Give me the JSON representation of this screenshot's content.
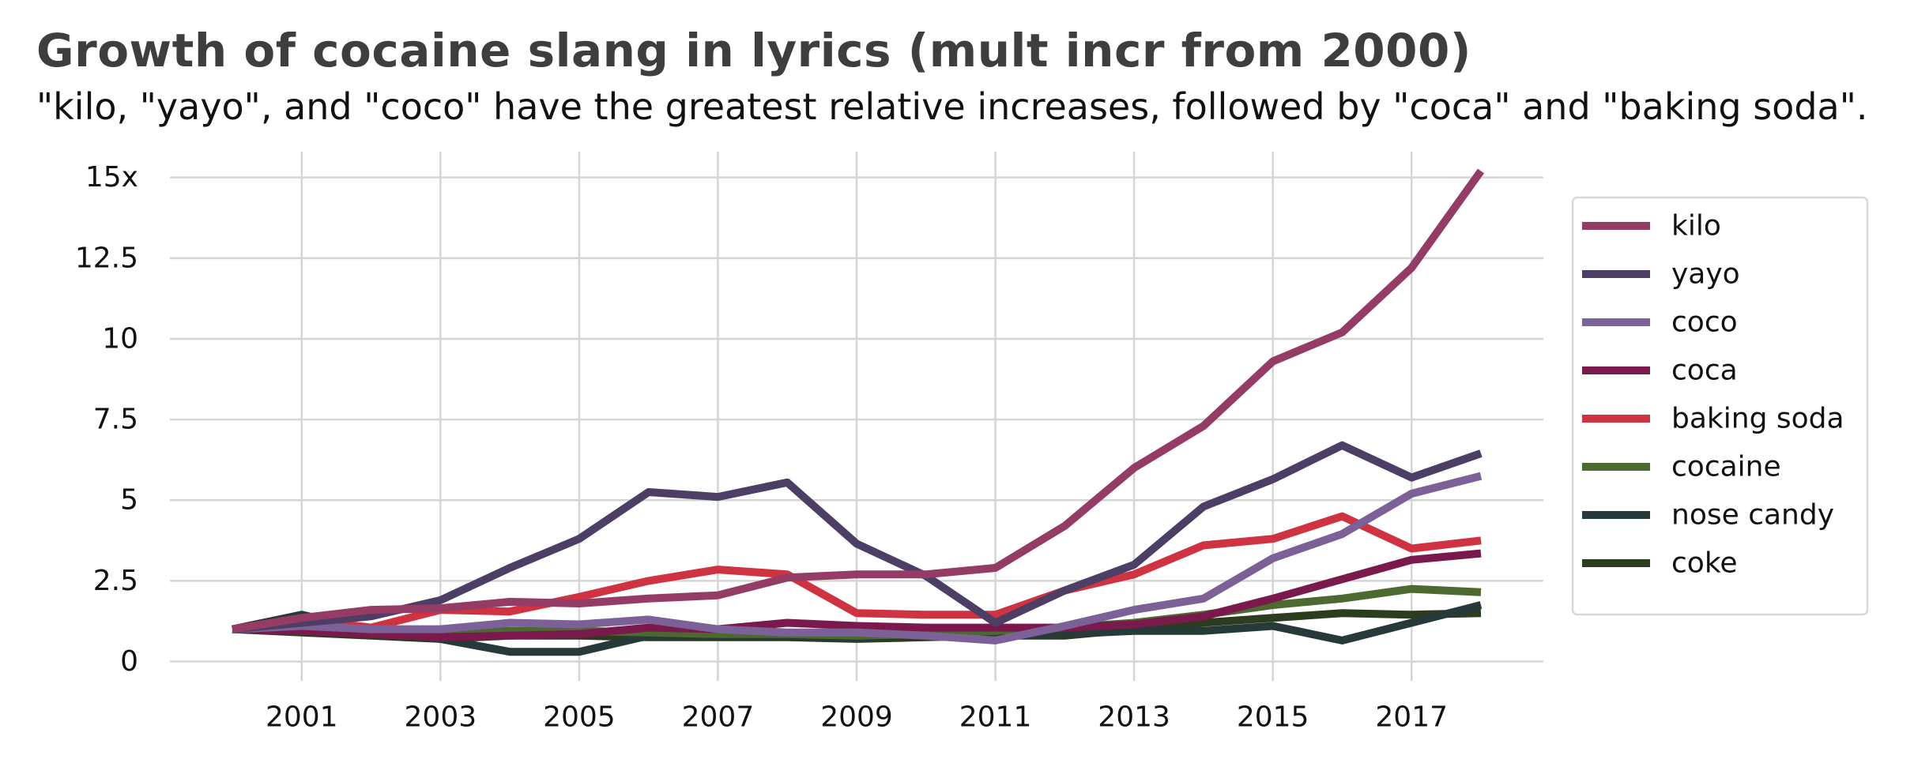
{
  "chart_data": {
    "type": "line",
    "title": "Growth of cocaine slang in lyrics (mult incr from 2000)",
    "subtitle": "\"kilo, \"yayo\", and \"coco\" have the greatest relative increases, followed by \"coca\" and \"baking soda\".",
    "xlabel": "",
    "ylabel": "",
    "x": [
      2000,
      2001,
      2002,
      2003,
      2004,
      2005,
      2006,
      2007,
      2008,
      2009,
      2010,
      2011,
      2012,
      2013,
      2014,
      2015,
      2016,
      2017,
      2018
    ],
    "xlim": [
      1999.1,
      2018.9
    ],
    "ylim": [
      -0.6,
      15.8
    ],
    "x_ticks": [
      2001,
      2003,
      2005,
      2007,
      2009,
      2011,
      2013,
      2015,
      2017
    ],
    "x_tick_labels": [
      "2001",
      "2003",
      "2005",
      "2007",
      "2009",
      "2011",
      "2013",
      "2015",
      "2017"
    ],
    "y_ticks": [
      0,
      2.5,
      5,
      7.5,
      10,
      12.5,
      15
    ],
    "y_tick_labels": [
      "0",
      "2.5",
      "5",
      "7.5",
      "10",
      "12.5",
      "15x"
    ],
    "grid": true,
    "legend_position": "right",
    "series": [
      {
        "name": "kilo",
        "color": "#943b66",
        "values": [
          1.0,
          1.35,
          1.6,
          1.65,
          1.85,
          1.8,
          1.95,
          2.05,
          2.6,
          2.7,
          2.7,
          2.9,
          4.2,
          6.0,
          7.3,
          9.3,
          10.2,
          12.2,
          15.2
        ]
      },
      {
        "name": "yayo",
        "color": "#4d3e65",
        "values": [
          1.0,
          1.2,
          1.4,
          1.9,
          2.9,
          3.8,
          5.25,
          5.1,
          5.55,
          3.65,
          2.65,
          1.2,
          2.2,
          3.0,
          4.8,
          5.65,
          6.7,
          5.7,
          6.45
        ]
      },
      {
        "name": "coco",
        "color": "#7c6198",
        "values": [
          1.0,
          1.1,
          1.0,
          1.0,
          1.2,
          1.15,
          1.3,
          1.0,
          0.9,
          0.9,
          0.8,
          0.65,
          1.1,
          1.6,
          1.95,
          3.2,
          3.95,
          5.2,
          5.75
        ]
      },
      {
        "name": "coca",
        "color": "#7a1a4c",
        "values": [
          1.0,
          0.95,
          0.85,
          0.75,
          0.8,
          0.85,
          1.05,
          1.0,
          1.2,
          1.1,
          1.05,
          1.05,
          1.05,
          1.15,
          1.4,
          1.95,
          2.55,
          3.15,
          3.35
        ]
      },
      {
        "name": "baking soda",
        "color": "#cf3342",
        "values": [
          1.0,
          1.3,
          1.05,
          1.6,
          1.55,
          2.0,
          2.5,
          2.85,
          2.7,
          1.5,
          1.45,
          1.45,
          2.2,
          2.7,
          3.6,
          3.8,
          4.5,
          3.5,
          3.75
        ]
      },
      {
        "name": "cocaine",
        "color": "#4c6a30",
        "values": [
          1.0,
          0.95,
          0.9,
          0.95,
          0.95,
          0.95,
          0.9,
          0.85,
          0.85,
          0.8,
          0.85,
          0.95,
          1.05,
          1.2,
          1.45,
          1.75,
          1.95,
          2.25,
          2.15
        ]
      },
      {
        "name": "nose candy",
        "color": "#263a3a",
        "values": [
          1.0,
          1.45,
          0.95,
          0.7,
          0.3,
          0.3,
          0.8,
          0.8,
          0.8,
          0.75,
          0.85,
          0.8,
          0.85,
          0.95,
          0.95,
          1.1,
          0.65,
          1.2,
          1.75
        ]
      },
      {
        "name": "coke",
        "color": "#2c3c1e",
        "values": [
          1.0,
          0.9,
          0.8,
          0.7,
          0.8,
          0.8,
          0.75,
          0.75,
          0.75,
          0.7,
          0.75,
          0.8,
          0.8,
          1.0,
          1.2,
          1.35,
          1.5,
          1.45,
          1.5
        ]
      }
    ]
  }
}
